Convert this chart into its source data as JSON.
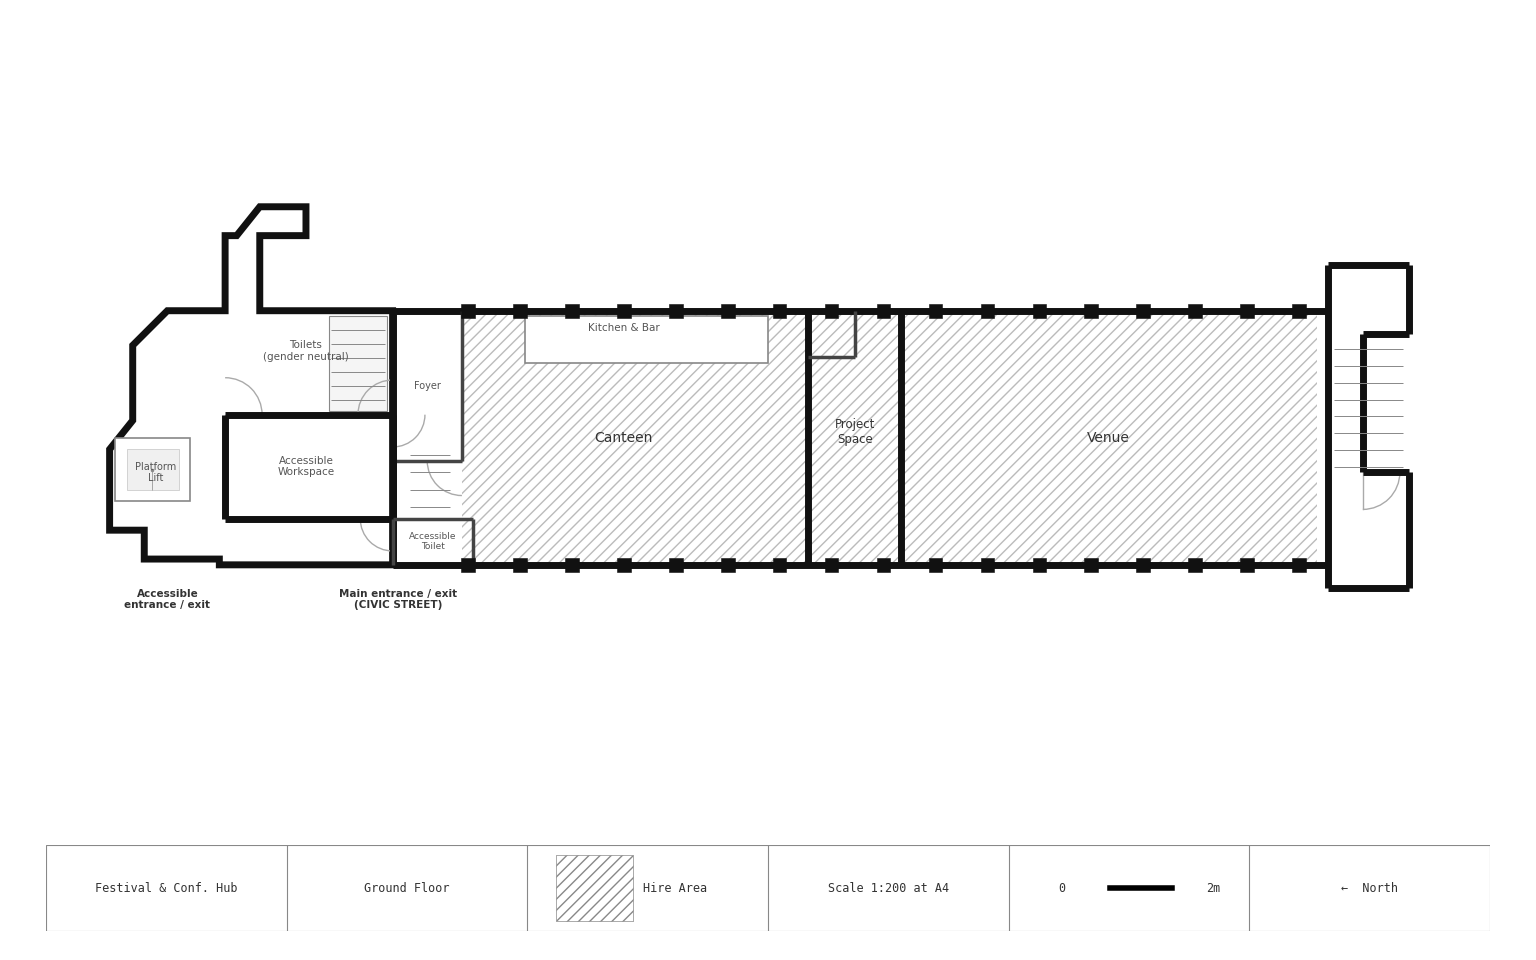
{
  "bg": "#ffffff",
  "wc": "#111111",
  "tc": "#888888",
  "lc": "#555555",
  "dk": "#333333",
  "thick": 5,
  "thin": 1.2,
  "med": 2.5,
  "room_labels": {
    "venue": "Venue",
    "project_space": "Project\nSpace",
    "canteen": "Canteen",
    "kitchen_bar": "Kitchen & Bar",
    "toilets": "Toilets\n(gender neutral)",
    "foyer": "Foyer",
    "acc_workspace": "Accessible\nWorkspace",
    "acc_toilet": "Accessible\nToilet",
    "platform_lift": "Platform\nLift"
  },
  "ext_labels": {
    "acc_entrance": "Accessible\nentrance / exit",
    "main_entrance": "Main entrance / exit\n(CIVIC STREET)"
  },
  "legend": [
    "Festival & Conf. Hub",
    "Ground Floor",
    "Hire Area",
    "Scale 1:200 at A4",
    "0  —  2m",
    "←  North"
  ]
}
